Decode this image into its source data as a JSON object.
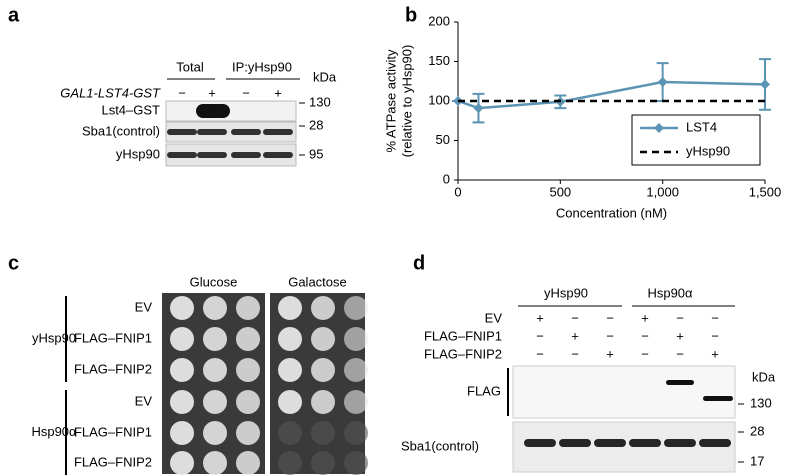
{
  "panel_a": {
    "label": "a",
    "lane_groups": [
      "Total",
      "IP:yHsp90"
    ],
    "construct": "GAL1-LST4-GST",
    "signs": [
      "−",
      "+",
      "−",
      "+"
    ],
    "unit": "kDa",
    "blots": [
      {
        "label": "Lst4–GST",
        "marker": "130"
      },
      {
        "label": "Sba1(control)",
        "marker": "28"
      },
      {
        "label": "yHsp90",
        "marker": "95"
      }
    ]
  },
  "chart_data": {
    "type": "line",
    "panel_label": "b",
    "x": [
      0,
      100,
      500,
      1000,
      1500
    ],
    "series": [
      {
        "name": "LST4",
        "color": "#5b94b4",
        "line_style": "solid",
        "values": [
          100,
          91,
          99,
          124,
          121
        ],
        "errors": [
          0,
          18,
          8,
          24,
          32
        ]
      },
      {
        "name": "yHsp90",
        "color": "#000000",
        "line_style": "dashed",
        "values": [
          100,
          100,
          100,
          100,
          100
        ]
      }
    ],
    "xlabel": "Concentration (nM)",
    "ylabel": [
      "% ATPase activity",
      "(relative to yHsp90)"
    ],
    "xlim": [
      0,
      1500
    ],
    "ylim": [
      0,
      200
    ],
    "xticks": [
      0,
      500,
      {
        "value": 1000,
        "label": "1,000"
      },
      {
        "value": 1500,
        "label": "1,500"
      }
    ],
    "yticks": [
      0,
      50,
      100,
      150,
      200
    ],
    "legend": "lower right"
  },
  "panel_c": {
    "label": "c",
    "columns": [
      "Glucose",
      "Galactose"
    ],
    "groups": [
      {
        "name": "yHsp90",
        "rows": [
          "EV",
          "FLAG–FNIP1",
          "FLAG–FNIP2"
        ]
      },
      {
        "name": "Hsp90α",
        "rows": [
          "EV",
          "FLAG–FNIP1",
          "FLAG–FNIP2"
        ]
      }
    ]
  },
  "panel_d": {
    "label": "d",
    "lane_groups": [
      "yHsp90",
      "Hsp90α"
    ],
    "unit": "kDa",
    "rows": [
      {
        "label": "EV",
        "signs": [
          "+",
          "−",
          "−",
          "+",
          "−",
          "−"
        ]
      },
      {
        "label": "FLAG–FNIP1",
        "signs": [
          "−",
          "+",
          "−",
          "−",
          "+",
          "−"
        ]
      },
      {
        "label": "FLAG–FNIP2",
        "signs": [
          "−",
          "−",
          "+",
          "−",
          "−",
          "+"
        ]
      }
    ],
    "blots": [
      {
        "label": "FLAG",
        "markers": [
          "130"
        ]
      },
      {
        "label": "Sba1(control)",
        "markers": [
          "28",
          "17"
        ]
      }
    ]
  }
}
